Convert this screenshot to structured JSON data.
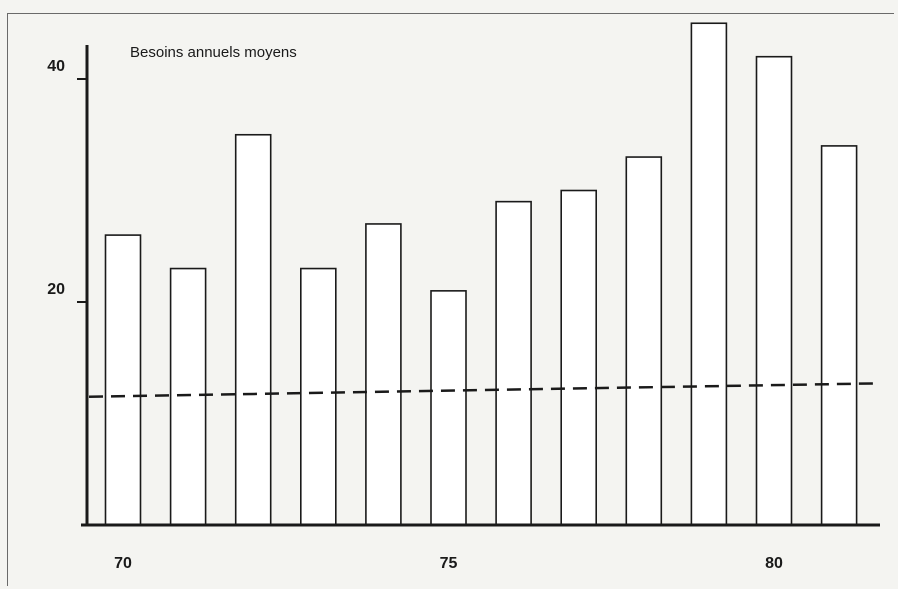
{
  "chart_data": {
    "type": "bar",
    "title": "Besoins annuels moyens",
    "xlabel": "",
    "ylabel": "",
    "categories": [
      "1970",
      "1971",
      "1972",
      "1973",
      "1974",
      "1975",
      "1976",
      "1977",
      "1978",
      "1979",
      "1980",
      "1981"
    ],
    "x_ticks": [
      {
        "value": 1970,
        "label": "70"
      },
      {
        "value": 1975,
        "label": "75"
      },
      {
        "value": 1980,
        "label": "80"
      }
    ],
    "y_ticks": [
      {
        "value": 20,
        "label": "20"
      },
      {
        "value": 40,
        "label": "40"
      }
    ],
    "ylim": [
      0,
      45
    ],
    "series": [
      {
        "values": [
          26,
          23,
          35,
          23,
          27,
          21,
          29,
          30,
          33,
          45,
          42,
          34
        ]
      }
    ],
    "trend_line": {
      "style": "dashed",
      "start": {
        "x": 1970,
        "y": 11.5
      },
      "end": {
        "x": 1981,
        "y": 12.7
      }
    },
    "grid": false,
    "legend": "none",
    "colors": {
      "bar_fill": "#ffffff",
      "stroke": "#1a1a1a",
      "background": "#f4f4f1"
    }
  }
}
